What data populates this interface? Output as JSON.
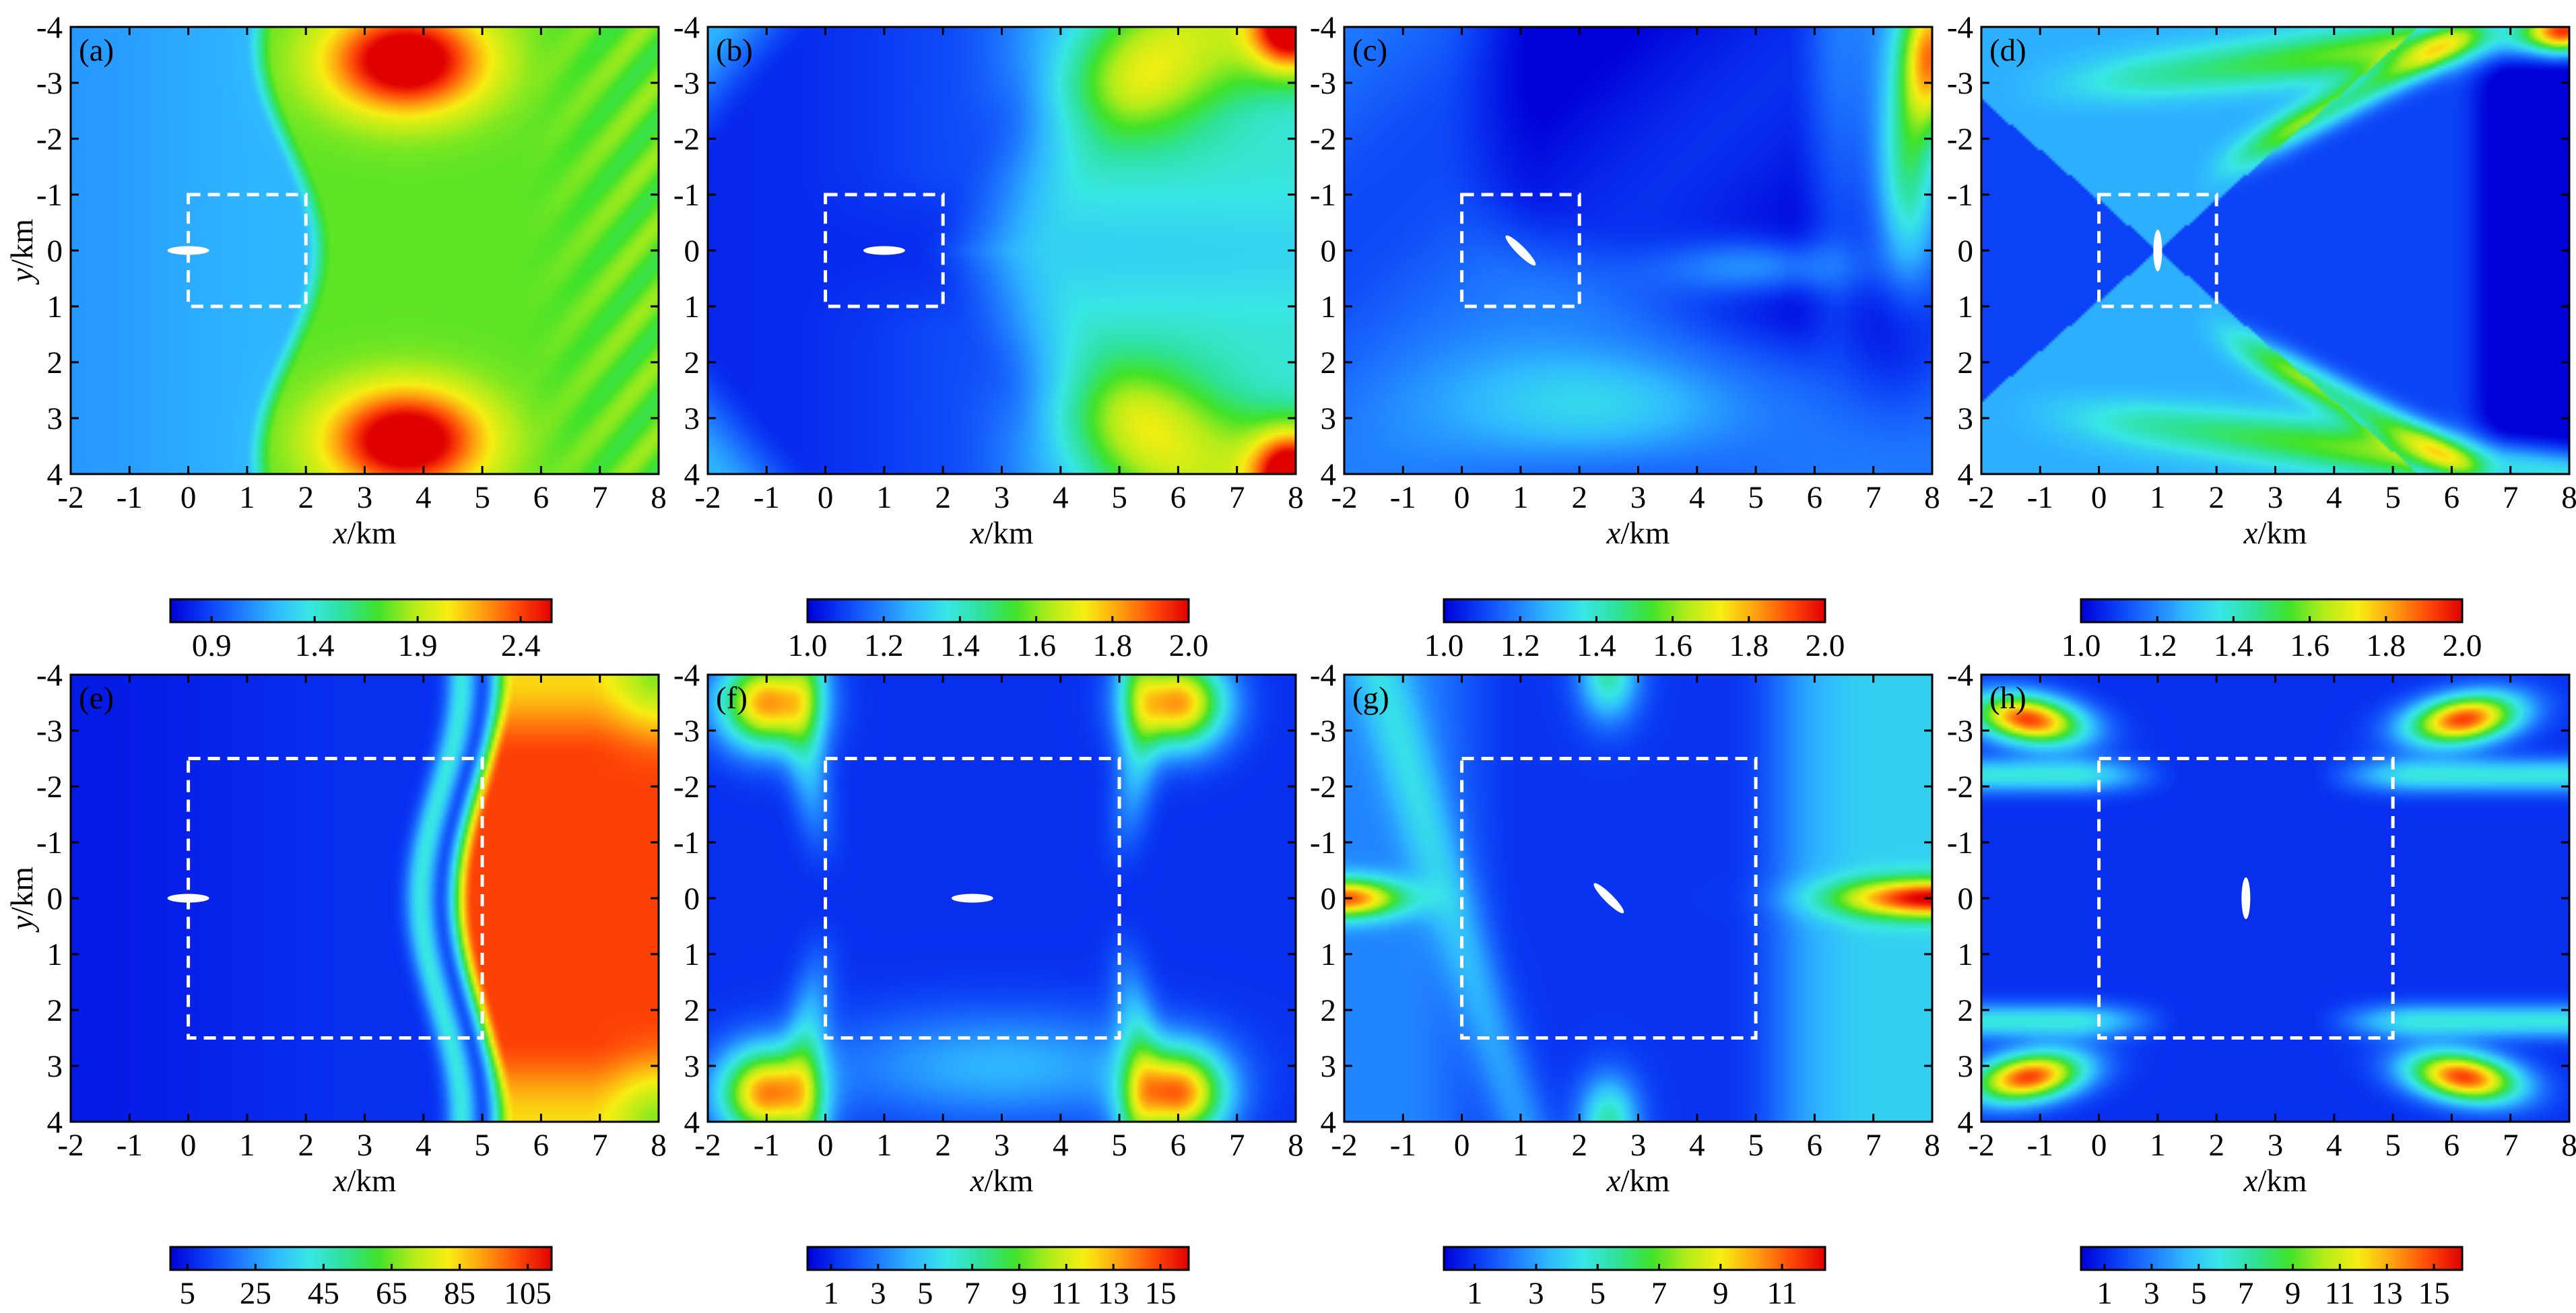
{
  "figure": {
    "background": "#ffffff"
  },
  "colormap": [
    "#0000d8",
    "#0a3cf5",
    "#1e78ff",
    "#2fb8ff",
    "#38e6e6",
    "#2ee29a",
    "#3fe22a",
    "#b2ec1a",
    "#f7ee12",
    "#ffa010",
    "#ff4a08",
    "#e00000"
  ],
  "chart_data": [
    {
      "type": "heatmap",
      "panel_label": "(a)",
      "pattern": "a",
      "xlabel": "x/km",
      "ylabel": "y/km",
      "show_ylabel": true,
      "xlim": [
        -2,
        8
      ],
      "ylim": [
        -4,
        4
      ],
      "xticks": [
        "-2",
        "-1",
        "0",
        "1",
        "2",
        "3",
        "4",
        "5",
        "6",
        "7",
        "8"
      ],
      "yticks": [
        "-4",
        "-3",
        "-2",
        "-1",
        "0",
        "1",
        "2",
        "3",
        "4"
      ],
      "dashed_box": {
        "x0": 0,
        "x1": 2,
        "y0": -1,
        "y1": 1
      },
      "source_marker": {
        "x": 0,
        "y": 0,
        "angle_deg": 0
      },
      "colorbar": {
        "vmin": 0.7,
        "vmax": 2.55,
        "ticks": [
          "0.9",
          "1.4",
          "1.9",
          "2.4"
        ]
      }
    },
    {
      "type": "heatmap",
      "panel_label": "(b)",
      "pattern": "b",
      "xlabel": "x/km",
      "ylabel": "y/km",
      "show_ylabel": false,
      "xlim": [
        -2,
        8
      ],
      "ylim": [
        -4,
        4
      ],
      "xticks": [
        "-2",
        "-1",
        "0",
        "1",
        "2",
        "3",
        "4",
        "5",
        "6",
        "7",
        "8"
      ],
      "yticks": [
        "-4",
        "-3",
        "-2",
        "-1",
        "0",
        "1",
        "2",
        "3",
        "4"
      ],
      "dashed_box": {
        "x0": 0,
        "x1": 2,
        "y0": -1,
        "y1": 1
      },
      "source_marker": {
        "x": 1,
        "y": 0,
        "angle_deg": 0
      },
      "colorbar": {
        "vmin": 1.0,
        "vmax": 2.0,
        "ticks": [
          "1.0",
          "1.2",
          "1.4",
          "1.6",
          "1.8",
          "2.0"
        ]
      }
    },
    {
      "type": "heatmap",
      "panel_label": "(c)",
      "pattern": "c",
      "xlabel": "x/km",
      "ylabel": "y/km",
      "show_ylabel": false,
      "xlim": [
        -2,
        8
      ],
      "ylim": [
        -4,
        4
      ],
      "xticks": [
        "-2",
        "-1",
        "0",
        "1",
        "2",
        "3",
        "4",
        "5",
        "6",
        "7",
        "8"
      ],
      "yticks": [
        "-4",
        "-3",
        "-2",
        "-1",
        "0",
        "1",
        "2",
        "3",
        "4"
      ],
      "dashed_box": {
        "x0": 0,
        "x1": 2,
        "y0": -1,
        "y1": 1
      },
      "source_marker": {
        "x": 1,
        "y": 0,
        "angle_deg": 45
      },
      "colorbar": {
        "vmin": 1.0,
        "vmax": 2.0,
        "ticks": [
          "1.0",
          "1.2",
          "1.4",
          "1.6",
          "1.8",
          "2.0"
        ]
      }
    },
    {
      "type": "heatmap",
      "panel_label": "(d)",
      "pattern": "d",
      "xlabel": "x/km",
      "ylabel": "y/km",
      "show_ylabel": false,
      "xlim": [
        -2,
        8
      ],
      "ylim": [
        -4,
        4
      ],
      "xticks": [
        "-2",
        "-1",
        "0",
        "1",
        "2",
        "3",
        "4",
        "5",
        "6",
        "7",
        "8"
      ],
      "yticks": [
        "-4",
        "-3",
        "-2",
        "-1",
        "0",
        "1",
        "2",
        "3",
        "4"
      ],
      "dashed_box": {
        "x0": 0,
        "x1": 2,
        "y0": -1,
        "y1": 1
      },
      "source_marker": {
        "x": 1,
        "y": 0,
        "angle_deg": 90
      },
      "colorbar": {
        "vmin": 1.0,
        "vmax": 2.0,
        "ticks": [
          "1.0",
          "1.2",
          "1.4",
          "1.6",
          "1.8",
          "2.0"
        ]
      }
    },
    {
      "type": "heatmap",
      "panel_label": "(e)",
      "pattern": "e",
      "xlabel": "x/km",
      "ylabel": "y/km",
      "show_ylabel": true,
      "xlim": [
        -2,
        8
      ],
      "ylim": [
        -4,
        4
      ],
      "xticks": [
        "-2",
        "-1",
        "0",
        "1",
        "2",
        "3",
        "4",
        "5",
        "6",
        "7",
        "8"
      ],
      "yticks": [
        "-4",
        "-3",
        "-2",
        "-1",
        "0",
        "1",
        "2",
        "3",
        "4"
      ],
      "dashed_box": {
        "x0": 0,
        "x1": 5,
        "y0": -2.5,
        "y1": 2.5
      },
      "source_marker": {
        "x": 0,
        "y": 0,
        "angle_deg": 0
      },
      "colorbar": {
        "vmin": 0,
        "vmax": 112,
        "ticks": [
          "5",
          "25",
          "45",
          "65",
          "85",
          "105"
        ]
      }
    },
    {
      "type": "heatmap",
      "panel_label": "(f)",
      "pattern": "f",
      "xlabel": "x/km",
      "ylabel": "y/km",
      "show_ylabel": false,
      "xlim": [
        -2,
        8
      ],
      "ylim": [
        -4,
        4
      ],
      "xticks": [
        "-2",
        "-1",
        "0",
        "1",
        "2",
        "3",
        "4",
        "5",
        "6",
        "7",
        "8"
      ],
      "yticks": [
        "-4",
        "-3",
        "-2",
        "-1",
        "0",
        "1",
        "2",
        "3",
        "4"
      ],
      "dashed_box": {
        "x0": 0,
        "x1": 5,
        "y0": -2.5,
        "y1": 2.5
      },
      "source_marker": {
        "x": 2.5,
        "y": 0,
        "angle_deg": 0
      },
      "colorbar": {
        "vmin": 0,
        "vmax": 16.2,
        "ticks": [
          "1",
          "3",
          "5",
          "7",
          "9",
          "11",
          "13",
          "15"
        ]
      }
    },
    {
      "type": "heatmap",
      "panel_label": "(g)",
      "pattern": "g",
      "xlabel": "x/km",
      "ylabel": "y/km",
      "show_ylabel": false,
      "xlim": [
        -2,
        8
      ],
      "ylim": [
        -4,
        4
      ],
      "xticks": [
        "-2",
        "-1",
        "0",
        "1",
        "2",
        "3",
        "4",
        "5",
        "6",
        "7",
        "8"
      ],
      "yticks": [
        "-4",
        "-3",
        "-2",
        "-1",
        "0",
        "1",
        "2",
        "3",
        "4"
      ],
      "dashed_box": {
        "x0": 0,
        "x1": 5,
        "y0": -2.5,
        "y1": 2.5
      },
      "source_marker": {
        "x": 2.5,
        "y": 0,
        "angle_deg": 45
      },
      "colorbar": {
        "vmin": 0,
        "vmax": 12.4,
        "ticks": [
          "1",
          "3",
          "5",
          "7",
          "9",
          "11"
        ]
      }
    },
    {
      "type": "heatmap",
      "panel_label": "(h)",
      "pattern": "h",
      "xlabel": "x/km",
      "ylabel": "y/km",
      "show_ylabel": false,
      "xlim": [
        -2,
        8
      ],
      "ylim": [
        -4,
        4
      ],
      "xticks": [
        "-2",
        "-1",
        "0",
        "1",
        "2",
        "3",
        "4",
        "5",
        "6",
        "7",
        "8"
      ],
      "yticks": [
        "-4",
        "-3",
        "-2",
        "-1",
        "0",
        "1",
        "2",
        "3",
        "4"
      ],
      "dashed_box": {
        "x0": 0,
        "x1": 5,
        "y0": -2.5,
        "y1": 2.5
      },
      "source_marker": {
        "x": 2.5,
        "y": 0,
        "angle_deg": 90
      },
      "colorbar": {
        "vmin": 0,
        "vmax": 16.2,
        "ticks": [
          "1",
          "3",
          "5",
          "7",
          "9",
          "11",
          "13",
          "15"
        ]
      }
    }
  ]
}
